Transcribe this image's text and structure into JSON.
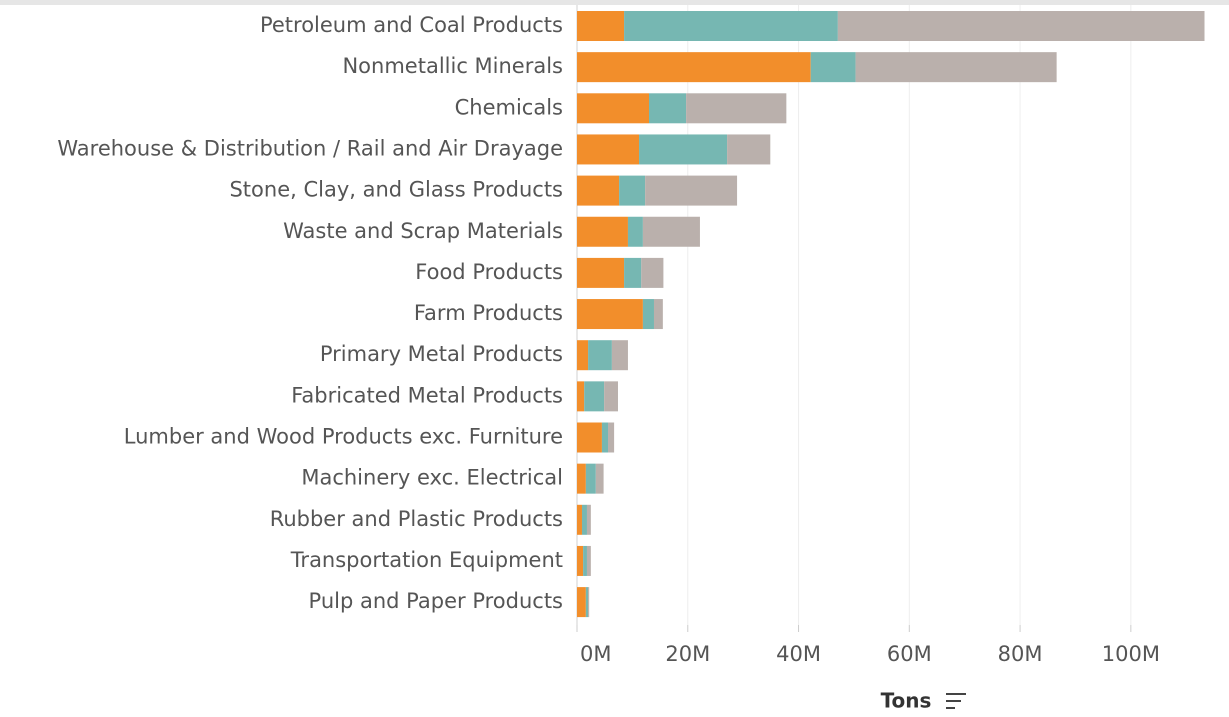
{
  "chart_data": {
    "type": "stacked-bar-horizontal",
    "x_label": "Tons",
    "categories": [
      "Petroleum and Coal Products",
      "Nonmetallic Minerals",
      "Chemicals",
      "Warehouse & Distribution / Rail and Air Drayage",
      "Stone, Clay, and Glass Products",
      "Waste and Scrap Materials",
      "Food Products",
      "Farm Products",
      "Primary Metal Products",
      "Fabricated Metal Products",
      "Lumber and Wood Products exc. Furniture",
      "Machinery exc. Electrical",
      "Rubber and Plastic Products",
      "Transportation Equipment",
      "Pulp and Paper Products"
    ],
    "series": [
      {
        "color": "#f28e2b",
        "values": [
          8500000,
          42200000,
          13000000,
          11200000,
          7600000,
          9200000,
          8500000,
          11900000,
          2000000,
          1300000,
          4500000,
          1600000,
          900000,
          1100000,
          1600000
        ]
      },
      {
        "color": "#76b7b2",
        "values": [
          38600000,
          8100000,
          6700000,
          15900000,
          4700000,
          2700000,
          3100000,
          2000000,
          4300000,
          3600000,
          1100000,
          1800000,
          900000,
          700000,
          400000
        ]
      },
      {
        "color": "#bab0ac",
        "values": [
          66200000,
          36300000,
          18100000,
          7800000,
          16600000,
          10300000,
          4000000,
          1600000,
          2900000,
          2500000,
          1100000,
          1400000,
          700000,
          700000,
          200000
        ]
      }
    ],
    "xlim": [
      0,
      117000000
    ],
    "xticks": [
      {
        "value": 0,
        "label": "0M"
      },
      {
        "value": 20000000,
        "label": "20M"
      },
      {
        "value": 40000000,
        "label": "40M"
      },
      {
        "value": 60000000,
        "label": "60M"
      },
      {
        "value": 80000000,
        "label": "80M"
      },
      {
        "value": 100000000,
        "label": "100M"
      }
    ],
    "grid": true
  }
}
